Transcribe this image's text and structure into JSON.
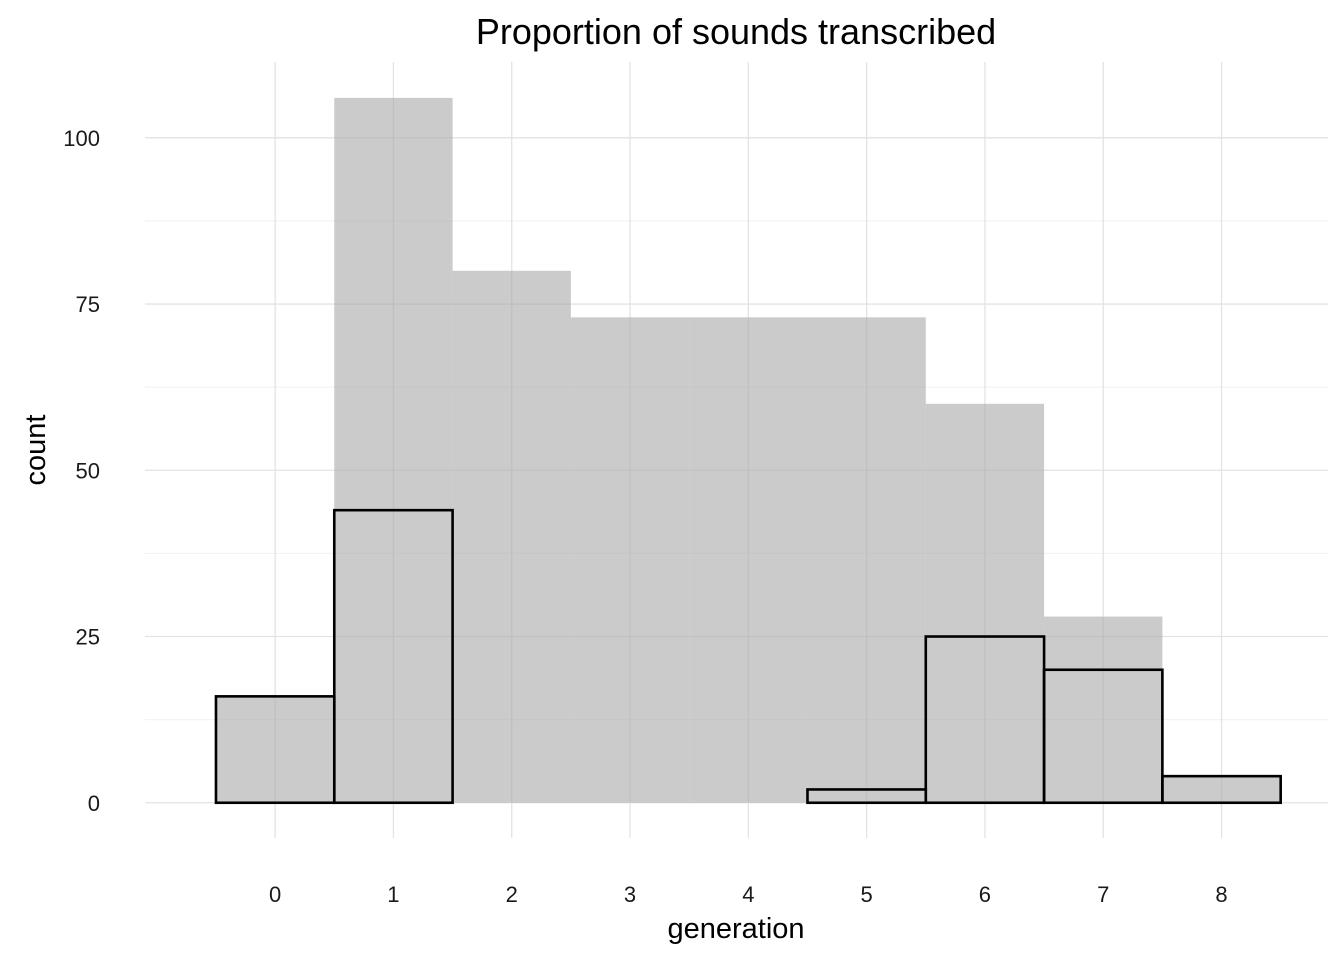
{
  "chart_data": {
    "type": "bar",
    "title": "Proportion of sounds transcribed",
    "xlabel": "generation",
    "ylabel": "count",
    "categories": [
      "0",
      "1",
      "2",
      "3",
      "4",
      "5",
      "6",
      "7",
      "8"
    ],
    "x": [
      0,
      1,
      2,
      3,
      4,
      5,
      6,
      7,
      8
    ],
    "series": [
      {
        "values": [
          16,
          106,
          80,
          73,
          73,
          73,
          60,
          28,
          4
        ],
        "color": "#cccccc",
        "style": "filled"
      },
      {
        "values": [
          16,
          44,
          0,
          0,
          0,
          2,
          25,
          20,
          4
        ],
        "color": "#000000",
        "style": "outline"
      }
    ],
    "xlim": [
      -1.1,
      8.9
    ],
    "ylim": [
      -5.3,
      111.4
    ],
    "yticks": [
      0,
      25,
      50,
      75,
      100
    ],
    "grid": true,
    "legend": "none"
  }
}
